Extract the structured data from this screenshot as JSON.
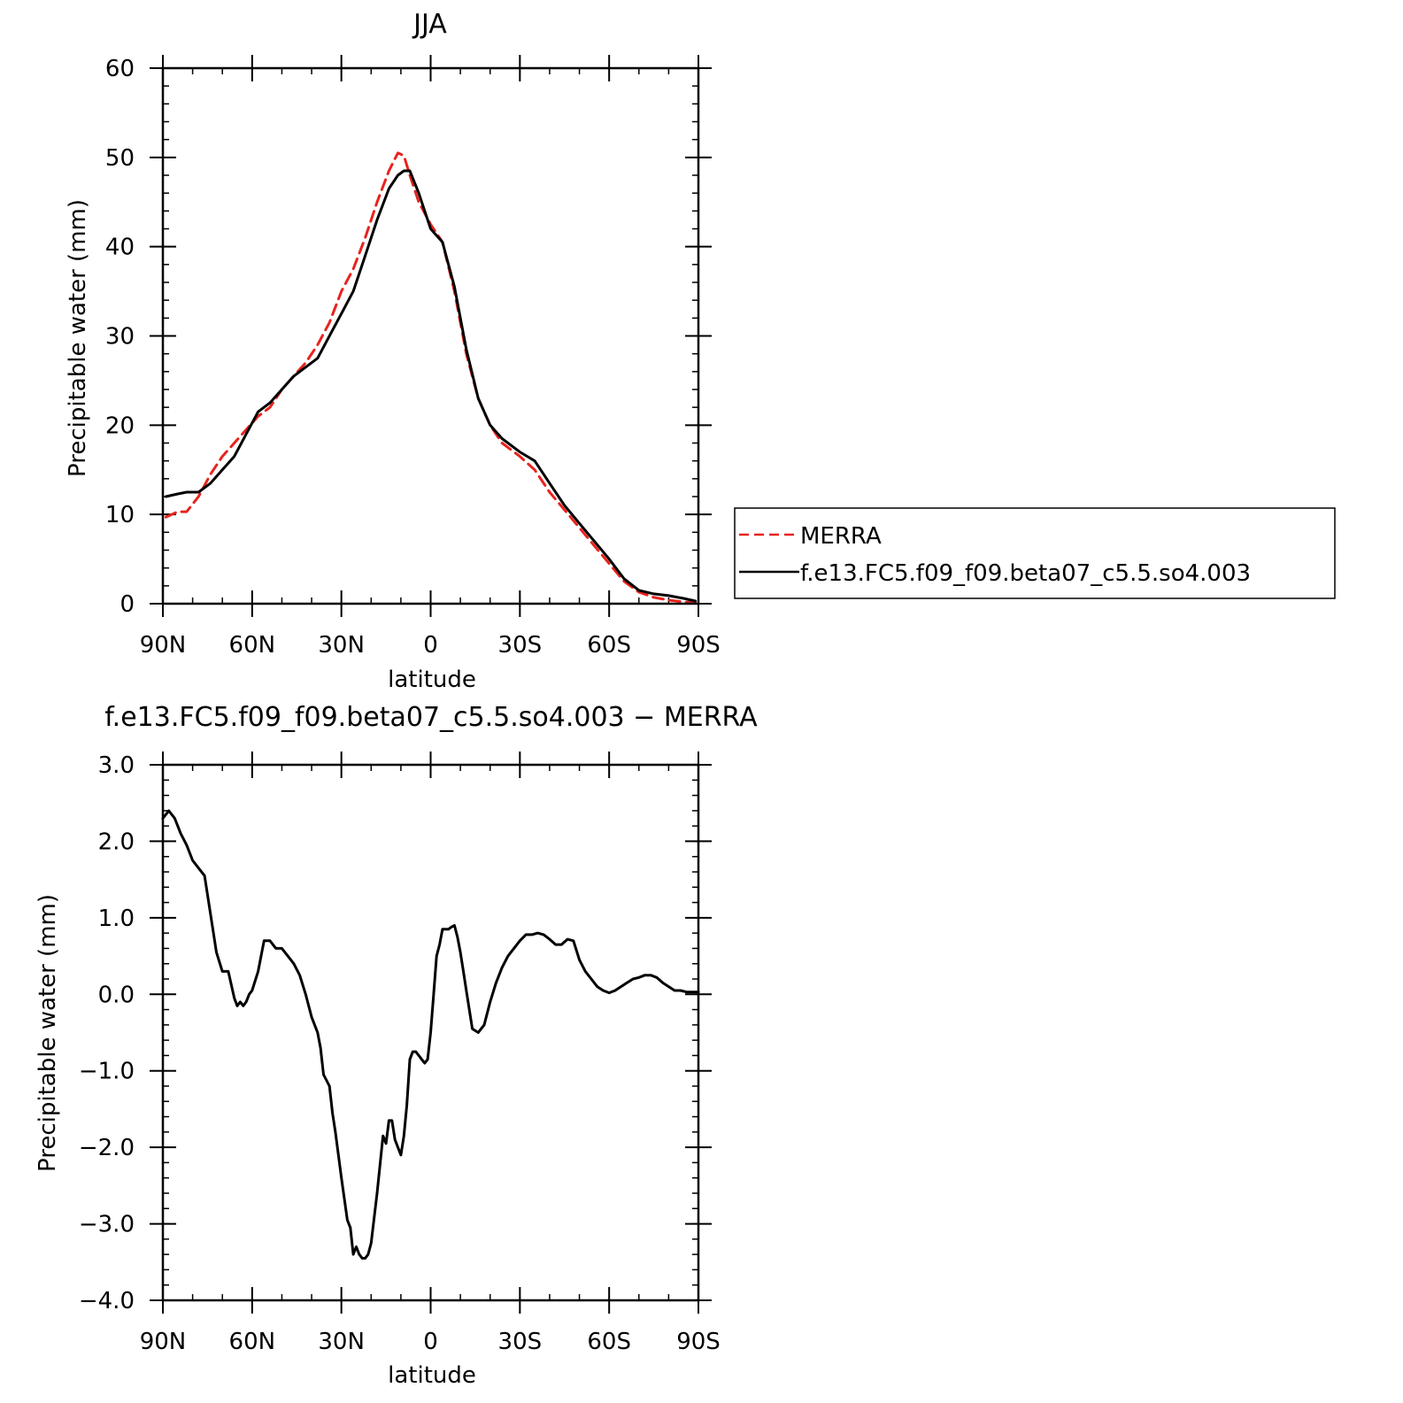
{
  "chart_data": [
    {
      "type": "line",
      "title": "JJA",
      "xlabel": "latitude",
      "ylabel": "Precipitable water (mm)",
      "xlim": [
        90,
        -90
      ],
      "ylim": [
        0,
        60
      ],
      "xticks": [
        90,
        60,
        30,
        0,
        -30,
        -60,
        -90
      ],
      "xtick_labels": [
        "90N",
        "60N",
        "30N",
        "0",
        "30S",
        "60S",
        "90S"
      ],
      "yticks": [
        0,
        10,
        20,
        30,
        40,
        50,
        60
      ],
      "ytick_labels": [
        "0",
        "10",
        "20",
        "30",
        "40",
        "50",
        "60"
      ],
      "legend_position": "right-outside",
      "series": [
        {
          "name": "MERRA",
          "color": "#e8231e",
          "style": "dashed",
          "x": [
            89,
            85,
            82,
            78,
            74,
            70,
            66,
            62,
            58,
            54,
            50,
            46,
            42,
            38,
            34,
            30,
            26,
            22,
            18,
            14,
            11,
            9,
            7,
            4,
            0,
            -4,
            -8,
            -12,
            -16,
            -20,
            -24,
            -30,
            -35,
            -40,
            -45,
            -50,
            -55,
            -60,
            -65,
            -70,
            -75,
            -80,
            -85,
            -89
          ],
          "y": [
            9.7,
            10.3,
            10.3,
            12.0,
            14.5,
            16.5,
            18.0,
            19.5,
            21.0,
            22.0,
            24.0,
            25.5,
            27.0,
            29.0,
            31.5,
            35.0,
            37.5,
            41.0,
            45.0,
            48.5,
            50.5,
            50.2,
            48.0,
            45.0,
            42.5,
            40.5,
            35.0,
            28.0,
            23.0,
            20.0,
            18.0,
            16.5,
            15.0,
            12.5,
            10.5,
            8.5,
            6.5,
            4.5,
            2.5,
            1.3,
            0.7,
            0.4,
            0.2,
            0.1
          ]
        },
        {
          "name": "f.e13.FC5.f09_f09.beta07_c5.5.so4.003",
          "color": "#000000",
          "style": "solid",
          "x": [
            89,
            85,
            82,
            78,
            74,
            70,
            66,
            62,
            58,
            54,
            50,
            46,
            42,
            38,
            34,
            30,
            26,
            22,
            18,
            14,
            11,
            9,
            7,
            4,
            0,
            -4,
            -8,
            -12,
            -16,
            -20,
            -24,
            -30,
            -35,
            -40,
            -45,
            -50,
            -55,
            -60,
            -65,
            -70,
            -75,
            -80,
            -85,
            -89
          ],
          "y": [
            12.0,
            12.3,
            12.5,
            12.5,
            13.5,
            15.0,
            16.5,
            19.0,
            21.5,
            22.5,
            24.0,
            25.5,
            26.5,
            27.5,
            30.0,
            32.5,
            35.0,
            39.0,
            43.0,
            46.5,
            48.0,
            48.5,
            48.5,
            46.0,
            42.0,
            40.5,
            35.5,
            28.5,
            23.0,
            20.0,
            18.5,
            17.0,
            16.0,
            13.5,
            11.0,
            9.0,
            7.0,
            5.0,
            2.8,
            1.5,
            1.1,
            0.9,
            0.6,
            0.3
          ]
        }
      ]
    },
    {
      "type": "line",
      "title": "f.e13.FC5.f09_f09.beta07_c5.5.so4.003 − MERRA",
      "xlabel": "latitude",
      "ylabel": "Precipitable water (mm)",
      "xlim": [
        90,
        -90
      ],
      "ylim": [
        -4.0,
        3.0
      ],
      "xticks": [
        90,
        60,
        30,
        0,
        -30,
        -60,
        -90
      ],
      "xtick_labels": [
        "90N",
        "60N",
        "30N",
        "0",
        "30S",
        "60S",
        "90S"
      ],
      "yticks": [
        3.0,
        2.0,
        1.0,
        0.0,
        -1.0,
        -2.0,
        -3.0,
        -4.0
      ],
      "ytick_labels": [
        "3.0",
        "2.0",
        "1.0",
        "0.0",
        "−1.0",
        "−2.0",
        "−3.0",
        "−4.0"
      ],
      "series": [
        {
          "color": "#000000",
          "style": "solid",
          "x": [
            90,
            88,
            86,
            84,
            82,
            80,
            78,
            76,
            74,
            72,
            70,
            68,
            66,
            65,
            64,
            63,
            62,
            61,
            60,
            58,
            56,
            54,
            52,
            50,
            48,
            46,
            44,
            42,
            40,
            38,
            37,
            36,
            34,
            33,
            32,
            31,
            30,
            28,
            27,
            26,
            25,
            24,
            23,
            22,
            21,
            20,
            18,
            16,
            15,
            14,
            13,
            12,
            11,
            10,
            9,
            8,
            7,
            6,
            5,
            4,
            3,
            2,
            1,
            0,
            -1,
            -2,
            -3,
            -4,
            -5,
            -6,
            -7,
            -8,
            -9,
            -10,
            -11,
            -12,
            -14,
            -16,
            -17,
            -18,
            -20,
            -22,
            -24,
            -26,
            -28,
            -30,
            -32,
            -34,
            -36,
            -38,
            -40,
            -42,
            -44,
            -46,
            -48,
            -50,
            -52,
            -54,
            -56,
            -58,
            -60,
            -62,
            -64,
            -66,
            -68,
            -70,
            -72,
            -74,
            -76,
            -78,
            -80,
            -82,
            -84,
            -86,
            -88,
            -90
          ],
          "y": [
            2.3,
            2.4,
            2.3,
            2.1,
            1.95,
            1.75,
            1.65,
            1.55,
            1.05,
            0.55,
            0.3,
            0.3,
            -0.05,
            -0.15,
            -0.1,
            -0.15,
            -0.1,
            0.0,
            0.05,
            0.3,
            0.7,
            0.7,
            0.6,
            0.6,
            0.5,
            0.4,
            0.25,
            0.0,
            -0.3,
            -0.5,
            -0.7,
            -1.05,
            -1.2,
            -1.55,
            -1.8,
            -2.1,
            -2.4,
            -2.95,
            -3.05,
            -3.4,
            -3.3,
            -3.4,
            -3.45,
            -3.45,
            -3.4,
            -3.25,
            -2.6,
            -1.85,
            -1.95,
            -1.65,
            -1.65,
            -1.9,
            -2.0,
            -2.1,
            -1.85,
            -1.45,
            -0.85,
            -0.75,
            -0.75,
            -0.8,
            -0.85,
            -0.9,
            -0.85,
            -0.5,
            0.0,
            0.5,
            0.65,
            0.85,
            0.85,
            0.85,
            0.88,
            0.9,
            0.75,
            0.55,
            0.3,
            0.05,
            -0.45,
            -0.5,
            -0.45,
            -0.4,
            -0.1,
            0.15,
            0.35,
            0.5,
            0.6,
            0.7,
            0.78,
            0.78,
            0.8,
            0.78,
            0.72,
            0.65,
            0.65,
            0.72,
            0.7,
            0.45,
            0.3,
            0.2,
            0.1,
            0.05,
            0.02,
            0.05,
            0.1,
            0.15,
            0.2,
            0.22,
            0.25,
            0.25,
            0.22,
            0.15,
            0.1,
            0.05,
            0.05,
            0.03,
            0.03,
            0.03
          ]
        }
      ]
    }
  ]
}
